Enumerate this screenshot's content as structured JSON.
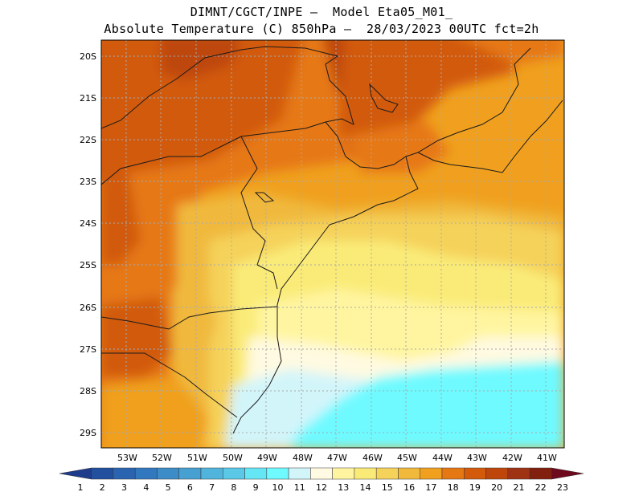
{
  "title": {
    "line1": "DIMNT/CGCT/INPE –  Model Eta05_M01_",
    "line2": "Absolute Temperature (C) 850hPa –  28/03/2023 00UTC fct=2h"
  },
  "map": {
    "lat_labels": [
      "20S",
      "21S",
      "22S",
      "23S",
      "24S",
      "25S",
      "26S",
      "27S",
      "28S",
      "29S"
    ],
    "lon_labels": [
      "53W",
      "52W",
      "51W",
      "50W",
      "49W",
      "48W",
      "47W",
      "46W",
      "45W",
      "44W",
      "43W",
      "42W",
      "41W"
    ]
  },
  "colorbar": {
    "labels": [
      "1",
      "2",
      "3",
      "4",
      "5",
      "6",
      "7",
      "8",
      "9",
      "10",
      "11",
      "12",
      "13",
      "14",
      "15",
      "16",
      "17",
      "18",
      "19",
      "20",
      "21",
      "22",
      "23"
    ],
    "colors": [
      "#1e3c8c",
      "#23509e",
      "#2a64b0",
      "#3278be",
      "#3c8cc8",
      "#46a0d2",
      "#50b4dc",
      "#5ac8e6",
      "#64e6f5",
      "#6efaff",
      "#d2f5fa",
      "#fffae1",
      "#fff5a0",
      "#faeb78",
      "#f5d25a",
      "#f0b93c",
      "#f0a01e",
      "#e67814",
      "#d25a0a",
      "#be460a",
      "#a03214",
      "#82200f",
      "#6e0a1e"
    ]
  }
}
